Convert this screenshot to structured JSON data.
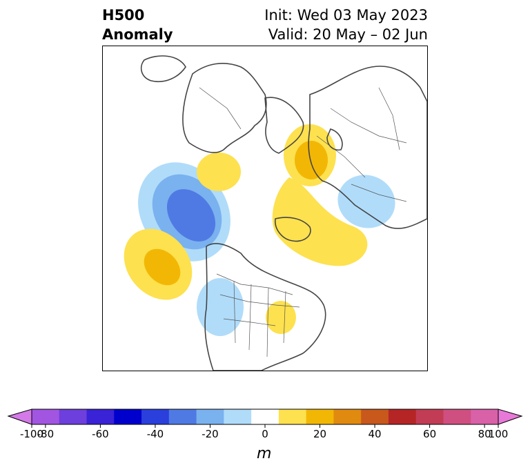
{
  "title": {
    "left_line1": "H500",
    "left_line2": "Anomaly",
    "right_line1": "Init: Wed 03 May 2023",
    "right_line2": "Valid: 20 May – 02 Jun"
  },
  "colorbar": {
    "unit": "m",
    "ticks": [
      "-100",
      "-80",
      "-60",
      "-40",
      "-20",
      "0",
      "20",
      "40",
      "60",
      "80",
      "100"
    ],
    "colors": [
      "#a155e0",
      "#6d3fdc",
      "#3a22d6",
      "#0000cc",
      "#2a3fdc",
      "#4f7ae4",
      "#7ab1ef",
      "#b0dcfa",
      "#ffffff",
      "#fde14f",
      "#f2b705",
      "#e08a10",
      "#c9581c",
      "#b52525",
      "#c23c55",
      "#cf4f80",
      "#d861a8"
    ],
    "min_color": "#d37ae8",
    "max_color": "#e879d8"
  },
  "map": {
    "projection": "north polar stereographic",
    "features": [
      "coastlines",
      "country borders",
      "state/province borders"
    ],
    "anomalies": [
      {
        "region": "Gulf of Alaska / Pacific NW coast",
        "value_m": -50,
        "sign": "negative"
      },
      {
        "region": "Central Pacific (south of Aleutians)",
        "value_m": 30,
        "sign": "positive"
      },
      {
        "region": "Western United States",
        "value_m": -15,
        "sign": "negative"
      },
      {
        "region": "Eastern United States",
        "value_m": 15,
        "sign": "positive"
      },
      {
        "region": "North Atlantic / Greenland",
        "value_m": 15,
        "sign": "positive"
      },
      {
        "region": "Northern Europe / Scandinavia",
        "value_m": 25,
        "sign": "positive"
      },
      {
        "region": "Eastern Siberia",
        "value_m": 15,
        "sign": "positive"
      },
      {
        "region": "Western Siberia",
        "value_m": -15,
        "sign": "negative"
      }
    ]
  }
}
